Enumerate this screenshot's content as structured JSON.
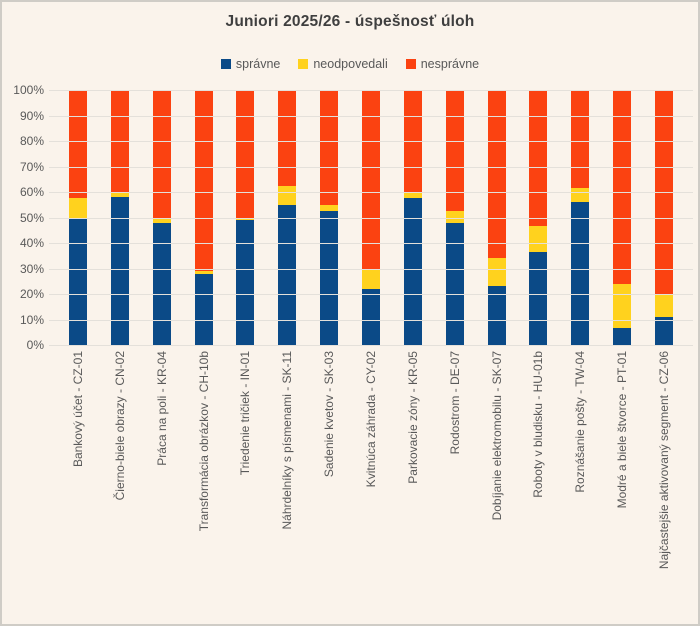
{
  "title": "Juniori 2025/26 - úspešnosť úloh",
  "colors": {
    "background": "#FAF3EB",
    "gridline": "#E4E0DA",
    "title_text": "#3F3F3F",
    "axis_text": "#595959",
    "spravne": "#0B4A87",
    "neodpovedali": "#FFD21E",
    "nespravne": "#FB4211"
  },
  "chart_data": {
    "type": "bar",
    "stacked": true,
    "orientation": "vertical",
    "title": "Juniori 2025/26 - úspešnosť úloh",
    "legend_position": "top",
    "grid": true,
    "ylim": [
      0,
      100
    ],
    "ytick_step": 10,
    "ytick_suffix": "%",
    "categories": [
      "Bankový účet - CZ-01",
      "Čierno-biele obrazy - CN-02",
      "Práca na poli - KR-04",
      "Transformácia obrázkov - CH-10b",
      "Triedenie tričiek - IN-01",
      "Náhrdelníky s písmenami - SK-11",
      "Sadenie kvetov - SK-03",
      "Kvitnúca záhrada - CY-02",
      "Parkovacie zóny - KR-05",
      "Rodostrom - DE-07",
      "Dobíjanie elektromobilu - SK-07",
      "Roboty v bludisku - HU-01b",
      "Roznášanie pošty - TW-04",
      "Modré a biele štvorce - PT-01",
      "Najčastejšie aktivovaný segment - CZ-06"
    ],
    "series": [
      {
        "name": "správne",
        "color": "#0B4A87",
        "values": [
          50,
          58,
          48,
          28,
          49,
          55,
          52.5,
          22,
          57.5,
          48,
          23,
          36.5,
          56,
          6.5,
          11
        ]
      },
      {
        "name": "neodpovedali",
        "color": "#FFD21E",
        "values": [
          7.5,
          2,
          1.5,
          1,
          1,
          7.5,
          2.5,
          7.5,
          2.5,
          4.5,
          11,
          10,
          5.5,
          17.5,
          9
        ]
      },
      {
        "name": "nesprávne",
        "color": "#FB4211",
        "values": [
          42.5,
          40,
          50.5,
          71,
          50,
          37.5,
          45,
          70.5,
          40,
          47.5,
          66,
          53.5,
          38.5,
          76,
          80
        ]
      }
    ]
  }
}
